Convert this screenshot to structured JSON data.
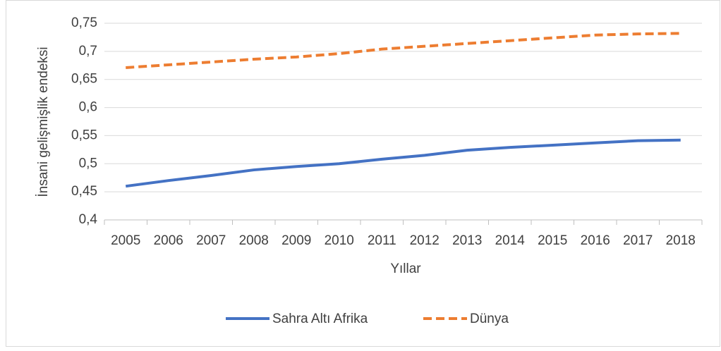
{
  "chart_data": {
    "type": "line",
    "x_label": "Yıllar",
    "y_label": "İnsani gelişmişlik endeksi",
    "categories": [
      "2005",
      "2006",
      "2007",
      "2008",
      "2009",
      "2010",
      "2011",
      "2012",
      "2013",
      "2014",
      "2015",
      "2016",
      "2017",
      "2018"
    ],
    "series": [
      {
        "name": "Sahra Altı Afrika",
        "color": "#4472c4",
        "dashed": false,
        "values": [
          0.46,
          0.47,
          0.479,
          0.489,
          0.495,
          0.5,
          0.508,
          0.515,
          0.524,
          0.529,
          0.533,
          0.537,
          0.541,
          0.542
        ]
      },
      {
        "name": "Dünya",
        "color": "#ed7d31",
        "dashed": true,
        "values": [
          0.671,
          0.676,
          0.681,
          0.686,
          0.69,
          0.696,
          0.704,
          0.709,
          0.714,
          0.719,
          0.724,
          0.729,
          0.731,
          0.732
        ]
      }
    ],
    "ylim": [
      0.4,
      0.75
    ],
    "yticks": [
      {
        "value": 0.4,
        "label": "0,4"
      },
      {
        "value": 0.45,
        "label": "0,45"
      },
      {
        "value": 0.5,
        "label": "0,5"
      },
      {
        "value": 0.55,
        "label": "0,55"
      },
      {
        "value": 0.6,
        "label": "0,6"
      },
      {
        "value": 0.65,
        "label": "0,65"
      },
      {
        "value": 0.7,
        "label": "0,7"
      },
      {
        "value": 0.75,
        "label": "0,75"
      }
    ],
    "grid": true,
    "legend": "bottom"
  }
}
